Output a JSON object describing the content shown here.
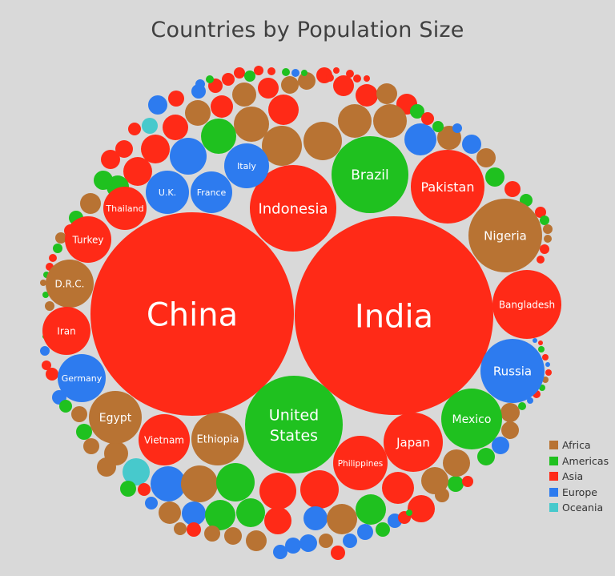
{
  "chart_data": {
    "type": "bubble",
    "title": "Countries by Population Size",
    "legend": {
      "placement": "bottom-right",
      "items": [
        {
          "name": "Africa",
          "color": "#b87333"
        },
        {
          "name": "Americas",
          "color": "#1fc11f"
        },
        {
          "name": "Asia",
          "color": "#ff2a17"
        },
        {
          "name": "Europe",
          "color": "#2d7bef"
        },
        {
          "name": "Oceania",
          "color": "#47c9cc"
        }
      ]
    },
    "labeled_bubbles": [
      {
        "label": "China",
        "region": "Asia"
      },
      {
        "label": "India",
        "region": "Asia"
      },
      {
        "label": "United States",
        "region": "Americas"
      },
      {
        "label": "Indonesia",
        "region": "Asia"
      },
      {
        "label": "Pakistan",
        "region": "Asia"
      },
      {
        "label": "Brazil",
        "region": "Americas"
      },
      {
        "label": "Nigeria",
        "region": "Africa"
      },
      {
        "label": "Bangladesh",
        "region": "Asia"
      },
      {
        "label": "Russia",
        "region": "Europe"
      },
      {
        "label": "Mexico",
        "region": "Americas"
      },
      {
        "label": "Japan",
        "region": "Asia"
      },
      {
        "label": "Ethiopia",
        "region": "Africa"
      },
      {
        "label": "Philippines",
        "region": "Asia"
      },
      {
        "label": "Egypt",
        "region": "Africa"
      },
      {
        "label": "Vietnam",
        "region": "Asia"
      },
      {
        "label": "D.R.C.",
        "region": "Africa"
      },
      {
        "label": "Turkey",
        "region": "Asia"
      },
      {
        "label": "Iran",
        "region": "Asia"
      },
      {
        "label": "Germany",
        "region": "Europe"
      },
      {
        "label": "Thailand",
        "region": "Asia"
      },
      {
        "label": "U.K.",
        "region": "Europe"
      },
      {
        "label": "France",
        "region": "Europe"
      },
      {
        "label": "Italy",
        "region": "Europe"
      }
    ]
  }
}
